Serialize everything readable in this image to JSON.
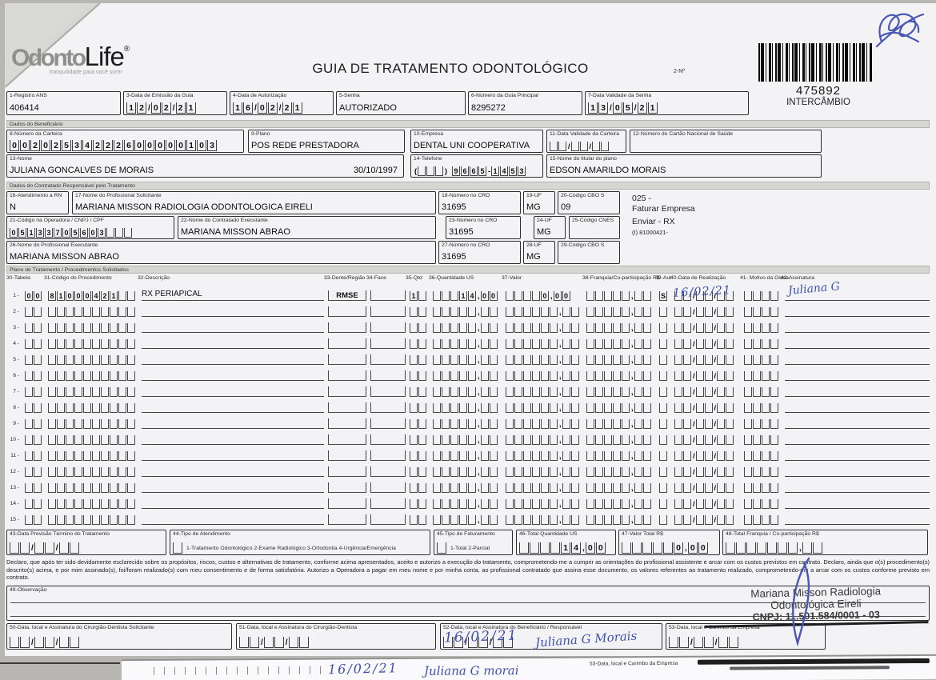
{
  "scan": {
    "brand_gray": "Odonto",
    "brand_black": "Life",
    "brand_reg": "®",
    "brand_tagline": "tranquilidade para você sorrir",
    "title": "GUIA DE TRATAMENTO ODONTOLÓGICO",
    "guide_number_label": "2-Nº",
    "guide_number": "475892",
    "guide_number_sub": "INTERCÂMBIO",
    "ink_blue": "#4050ae"
  },
  "top_fields": {
    "registro": {
      "label": "1-Registro ANS",
      "value": "406414"
    },
    "emissao": {
      "label": "3-Data de Emissão da Guia",
      "comb": "12/02/21"
    },
    "autorizacao": {
      "label": "4-Data de Autorização",
      "comb": "16/02/21"
    },
    "senha": {
      "label": "5-Senha",
      "value": "AUTORIZADO"
    },
    "guia_principal": {
      "label": "6-Número da Guia Principal",
      "value": "8295272"
    },
    "validade_senha": {
      "label": "7-Data Validade da Senha",
      "comb": "13/05/21"
    }
  },
  "sections": {
    "beneficiario": "Dados do Beneficiário",
    "contratado": "Dados do Contratado Responsável pelo Tratamento",
    "plano": "Plano de Tratamento / Procedimentos Solicitados"
  },
  "beneficiario": {
    "carteira": {
      "label": "8-Número da Carteira",
      "comb": "00202534222600000103"
    },
    "plano": {
      "label": "9-Plano",
      "value": "POS REDE PRESTADORA"
    },
    "empresa": {
      "label": "10-Empresa",
      "value": "DENTAL UNI COOPERATIVA"
    },
    "validade_carteira": {
      "label": "11-Data Validade da Carteira",
      "comb": "__/__/__"
    },
    "cartao_nacional": {
      "label": "12-Número do Cartão Nacional de Saúde",
      "value": ""
    },
    "nome": {
      "label": "13-Nome",
      "value": "JULIANA GONCALVES DE MORAIS",
      "nascimento": "30/10/1997"
    },
    "telefone": {
      "label": "14-Telefone",
      "comb": "(___)#9665-1453"
    },
    "titular": {
      "label": "15-Nome do titular do plano",
      "value": "EDSON AMARILDO MORAIS"
    }
  },
  "contratado": {
    "rn": {
      "label": "16-Atendimento a RN",
      "value": "N"
    },
    "solicitante": {
      "label": "17-Nome do Profissional Solicitante",
      "value": "MARIANA MISSON RADIOLOGIA ODONTOLOGICA EIRELI"
    },
    "cro18": {
      "label": "18-Número no CRO",
      "value": "31695"
    },
    "uf19": {
      "label": "19-UF",
      "value": "MG"
    },
    "cbo20": {
      "label": "20-Código CBO S",
      "value": "09"
    },
    "codigo_operadora": {
      "label": "21-Código na Operadora / CNPJ / CPF",
      "comb": "05133705603___"
    },
    "executante22": {
      "label": "22-Nome do Contratado Executante",
      "value": "MARIANA MISSON ABRAO"
    },
    "cro23": {
      "label": "23-Número no CRO",
      "value": "31695"
    },
    "uf24": {
      "label": "24-UF",
      "value": "MG"
    },
    "cnes25": {
      "label": "25-Código CNES",
      "value": ""
    },
    "executante26": {
      "label": "26-Nome do Profissional Executante",
      "value": "MARIANA MISSON ABRAO"
    },
    "cro27": {
      "label": "27-Número no CRO",
      "value": "31695"
    },
    "uf28": {
      "label": "28-UF",
      "value": "MG"
    },
    "cbo29": {
      "label": "29-Código CBO S",
      "value": ""
    },
    "notes": {
      "line1": "025 -",
      "line2": "Faturar Empresa",
      "line3": "Enviar - RX",
      "line4": "(I) 81000421-"
    }
  },
  "table": {
    "headers": [
      "30-Tabela",
      "31-Código do Procedimento",
      "32-Descrição",
      "33-Dente/Região",
      "34-Face",
      "35-Qtd",
      "36-Quantidade US",
      "37-Valor",
      "38-Franquia/Co-participação R$",
      "39-Aut",
      "40-Data de Realização",
      "41- Motivo da Glosa",
      "42-Assinatura"
    ],
    "empty_row": {
      "tabela": "__",
      "codigo": "__________",
      "desc": "",
      "dente": "",
      "face": "",
      "qtd": "__",
      "us": "_____,__",
      "valor": "______,__",
      "franquia": "_____,__",
      "aut": "_",
      "data": "__/__/__",
      "glosa": "____",
      "data_hand": "",
      "assin_hand": ""
    },
    "rows": [
      {
        "n": "1",
        "tabela": "00",
        "codigo": "81000421__",
        "desc": "RX PERIAPICAL",
        "dente": "RMSE",
        "face": "",
        "qtd": "1_",
        "us": "___14,00",
        "valor": "____0,00",
        "franquia": "_____,__",
        "aut": "S",
        "data": "__/__/__",
        "glosa": "____",
        "data_hand": "16/02/21",
        "assin_hand": "Juliana G"
      },
      {
        "n": "2"
      },
      {
        "n": "3"
      },
      {
        "n": "4"
      },
      {
        "n": "5"
      },
      {
        "n": "6"
      },
      {
        "n": "7"
      },
      {
        "n": "8"
      },
      {
        "n": "9"
      },
      {
        "n": "10"
      },
      {
        "n": "11"
      },
      {
        "n": "12"
      },
      {
        "n": "13"
      },
      {
        "n": "14"
      },
      {
        "n": "15"
      }
    ]
  },
  "totals": {
    "termino": {
      "label": "43-Data Previsão Término do Tratamento",
      "comb": "__/__/__"
    },
    "tipo_atendimento": {
      "label": "44-Tipo de Atendimento",
      "check": "_",
      "options": "1-Tratamento Odontológico  2-Exame Radiológico  3-Ortodontia  4-Urgência/Emergência"
    },
    "tipo_faturamento": {
      "label": "45-Tipo de Faturamento",
      "check": "_",
      "options": "1-Total  2-Parcial"
    },
    "total_us": {
      "label": "46-Total Quantidade US",
      "comb": "____14,00"
    },
    "total_valor": {
      "label": "47-Valor Total R$",
      "comb": "_____0,00"
    },
    "total_franquia": {
      "label": "48-Total Franquia / Co-participação R$",
      "comb": "_______,__"
    }
  },
  "declaration": "Declaro, que após ter sido devidamente esclarecido sobre os propósitos, riscos, custos e alternativas de tratamento, conforme acima apresentados, aceito e autorizo a execução do tratamento, comprometendo-me a cumprir as orientações do profissional assistente e arcar com os custos previstos em contrato. Declaro, ainda que o(s) procedimento(s) descrito(s) acima, e por mim assinado(s), foi/foram realizado(s) com meu consentimento e de forma satisfatória. Autorizo a Operadora a pagar em meu nome e por minha conta, ao profissional contratado que assina esse documento, os valores referentes ao tratamento realizado, comprometendo-me a arcar com os custos conforme previsto em contrato.",
  "observacao_label": "49-Observação",
  "stamp": {
    "line1": "Mariana Misson Radiologia",
    "line2": "Odontológica Eireli",
    "line3": "CNPJ: 11.501.584/0001 - 03"
  },
  "signature_fields": {
    "s50": {
      "label": "50-Data, local e Assinatura do Cirurgião-Dentista Solicitante",
      "comb": "__/__/__"
    },
    "s51": {
      "label": "51-Data, local e Assinatura do Cirurgião-Dentista",
      "comb": "__/__/__"
    },
    "s52": {
      "label": "52-Data, local e Assinatura do Beneficiário / Responsável",
      "comb": "__/__/__",
      "hand_date": "16/02/21",
      "hand_sign": "Juliana G Morais"
    },
    "s53": {
      "label": "53-Data, local e Carimbo da Empresa",
      "comb": "__/__/__"
    }
  },
  "peek": {
    "hand_date": "16/02/21",
    "hand_sign": "Juliana G morai",
    "label": "53-Data, local e Carimbo da Empresa"
  }
}
